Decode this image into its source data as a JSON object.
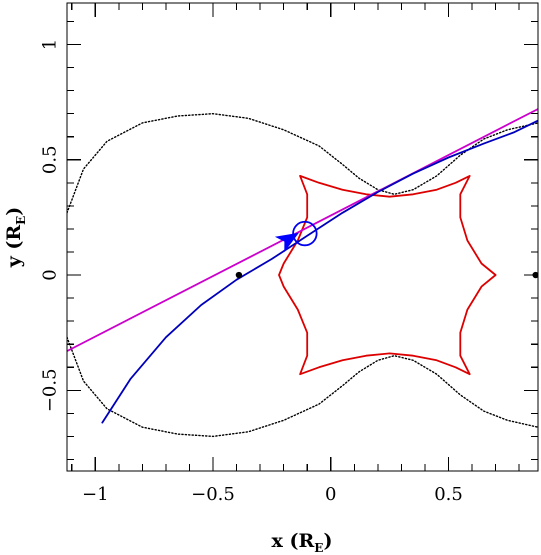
{
  "chart_data": {
    "type": "line",
    "xlabel": {
      "prefix": "x (R",
      "subscript": "E",
      "suffix": ")"
    },
    "ylabel": {
      "prefix": "y (R",
      "subscript": "E",
      "suffix": ")"
    },
    "xlim": [
      -1.12,
      0.88
    ],
    "ylim": [
      -0.85,
      1.18
    ],
    "x_ticks": [
      {
        "value": -1,
        "label": "−1"
      },
      {
        "value": -0.5,
        "label": "−0.5"
      },
      {
        "value": 0,
        "label": "0"
      },
      {
        "value": 0.5,
        "label": "0.5"
      }
    ],
    "y_ticks": [
      {
        "value": -0.5,
        "label": "−0.5"
      },
      {
        "value": 0,
        "label": "0"
      },
      {
        "value": 0.5,
        "label": "0.5"
      },
      {
        "value": 1,
        "label": "1"
      }
    ],
    "colors": {
      "critical_curve": "#000000",
      "caustic": "#dd0000",
      "straight_trajectory": "#cc00cc",
      "curved_trajectory": "#0000bb",
      "source_circle": "#0000ee",
      "arrow": "#0000ff"
    },
    "lenses": [
      {
        "x": -0.39,
        "y": 0.0
      },
      {
        "x": 0.87,
        "y": 0.0
      }
    ],
    "series": [
      {
        "kind": "critical_curve",
        "style": "dotted",
        "points": [
          [
            -1.12,
            0.27
          ],
          [
            -1.05,
            0.46
          ],
          [
            -0.95,
            0.58
          ],
          [
            -0.8,
            0.66
          ],
          [
            -0.65,
            0.69
          ],
          [
            -0.5,
            0.7
          ],
          [
            -0.35,
            0.68
          ],
          [
            -0.2,
            0.63
          ],
          [
            -0.05,
            0.56
          ],
          [
            0.05,
            0.48
          ],
          [
            0.12,
            0.42
          ],
          [
            0.2,
            0.37
          ],
          [
            0.27,
            0.35
          ],
          [
            0.35,
            0.37
          ],
          [
            0.45,
            0.43
          ],
          [
            0.55,
            0.52
          ],
          [
            0.65,
            0.59
          ],
          [
            0.75,
            0.63
          ],
          [
            0.88,
            0.66
          ]
        ]
      },
      {
        "kind": "critical_curve",
        "style": "dotted",
        "points": [
          [
            -1.12,
            -0.27
          ],
          [
            -1.05,
            -0.46
          ],
          [
            -0.95,
            -0.58
          ],
          [
            -0.8,
            -0.66
          ],
          [
            -0.65,
            -0.69
          ],
          [
            -0.5,
            -0.7
          ],
          [
            -0.35,
            -0.68
          ],
          [
            -0.2,
            -0.63
          ],
          [
            -0.05,
            -0.56
          ],
          [
            0.05,
            -0.48
          ],
          [
            0.12,
            -0.42
          ],
          [
            0.2,
            -0.37
          ],
          [
            0.27,
            -0.35
          ],
          [
            0.35,
            -0.37
          ],
          [
            0.45,
            -0.43
          ],
          [
            0.55,
            -0.52
          ],
          [
            0.65,
            -0.59
          ],
          [
            0.75,
            -0.63
          ],
          [
            0.88,
            -0.66
          ]
        ]
      },
      {
        "kind": "caustic",
        "style": "solid",
        "points": [
          [
            -0.13,
            0.43
          ],
          [
            -0.05,
            0.4
          ],
          [
            0.05,
            0.37
          ],
          [
            0.15,
            0.35
          ],
          [
            0.25,
            0.34
          ],
          [
            0.35,
            0.35
          ],
          [
            0.45,
            0.37
          ],
          [
            0.53,
            0.4
          ],
          [
            0.59,
            0.43
          ],
          [
            0.55,
            0.35
          ],
          [
            0.55,
            0.25
          ],
          [
            0.58,
            0.15
          ],
          [
            0.64,
            0.05
          ],
          [
            0.7,
            0.0
          ],
          [
            0.64,
            -0.05
          ],
          [
            0.58,
            -0.15
          ],
          [
            0.55,
            -0.25
          ],
          [
            0.55,
            -0.35
          ],
          [
            0.59,
            -0.43
          ],
          [
            0.53,
            -0.4
          ],
          [
            0.45,
            -0.37
          ],
          [
            0.35,
            -0.35
          ],
          [
            0.25,
            -0.34
          ],
          [
            0.15,
            -0.35
          ],
          [
            0.05,
            -0.37
          ],
          [
            -0.05,
            -0.4
          ],
          [
            -0.13,
            -0.43
          ],
          [
            -0.1,
            -0.35
          ],
          [
            -0.1,
            -0.25
          ],
          [
            -0.14,
            -0.15
          ],
          [
            -0.2,
            -0.05
          ],
          [
            -0.22,
            0.0
          ],
          [
            -0.2,
            0.05
          ],
          [
            -0.14,
            0.15
          ],
          [
            -0.1,
            0.25
          ],
          [
            -0.1,
            0.35
          ],
          [
            -0.13,
            0.43
          ]
        ]
      },
      {
        "kind": "straight_trajectory",
        "style": "solid",
        "points": [
          [
            -1.12,
            -0.33
          ],
          [
            0.88,
            0.72
          ]
        ]
      },
      {
        "kind": "curved_trajectory",
        "style": "solid",
        "points": [
          [
            -0.97,
            -0.64
          ],
          [
            -0.85,
            -0.45
          ],
          [
            -0.7,
            -0.27
          ],
          [
            -0.55,
            -0.13
          ],
          [
            -0.4,
            -0.02
          ],
          [
            -0.25,
            0.07
          ],
          [
            -0.1,
            0.17
          ],
          [
            0.05,
            0.27
          ],
          [
            0.2,
            0.36
          ],
          [
            0.35,
            0.44
          ],
          [
            0.5,
            0.51
          ],
          [
            0.65,
            0.57
          ],
          [
            0.78,
            0.62
          ],
          [
            0.88,
            0.67
          ]
        ]
      }
    ],
    "source_circle": {
      "x": -0.11,
      "y": 0.18,
      "r": 0.05
    },
    "arrow": {
      "tip": [
        -0.14,
        0.18
      ],
      "direction": [
        1,
        0.6
      ]
    }
  }
}
